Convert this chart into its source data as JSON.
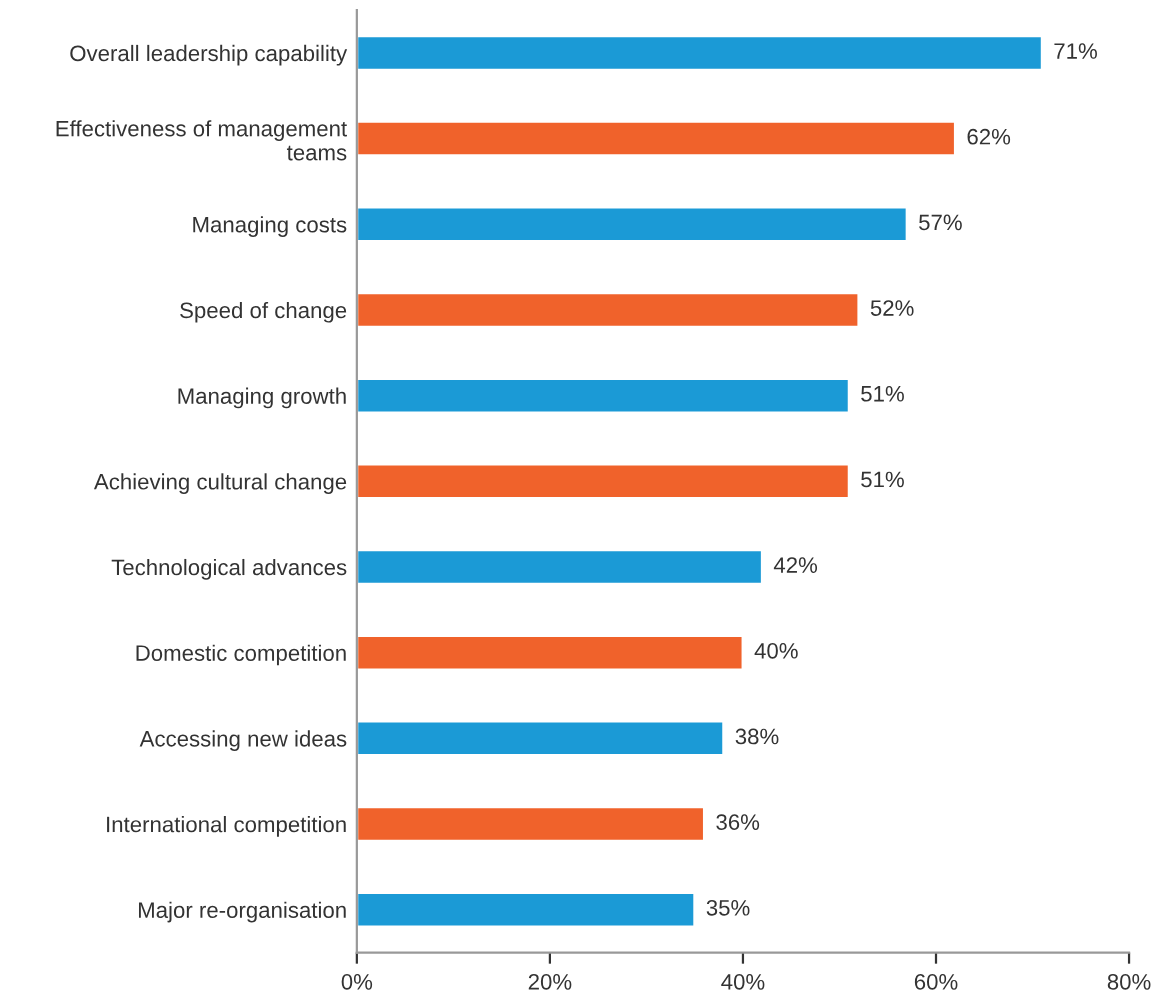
{
  "chart_data": {
    "type": "bar",
    "orientation": "horizontal",
    "categories": [
      "Overall leadership capability",
      "Effectiveness of management\nteams",
      "Managing costs",
      "Speed of change",
      "Managing growth",
      "Achieving cultural change",
      "Technological advances",
      "Domestic competition",
      "Accessing new ideas",
      "International competition",
      "Major re-organisation"
    ],
    "values": [
      71,
      62,
      57,
      52,
      51,
      51,
      42,
      40,
      38,
      36,
      35
    ],
    "colors": [
      "#1b9ad6",
      "#f0622b",
      "#1b9ad6",
      "#f0622b",
      "#1b9ad6",
      "#f0622b",
      "#1b9ad6",
      "#f0622b",
      "#1b9ad6",
      "#f0622b",
      "#1b9ad6"
    ],
    "value_labels": [
      "71%",
      "62%",
      "57%",
      "52%",
      "51%",
      "51%",
      "42%",
      "40%",
      "38%",
      "36%",
      "35%"
    ],
    "xlim": [
      0,
      80
    ],
    "xticks": [
      {
        "value": 0,
        "label": "0%"
      },
      {
        "value": 20,
        "label": "20%"
      },
      {
        "value": 40,
        "label": "40%"
      },
      {
        "value": 60,
        "label": "60%"
      },
      {
        "value": 80,
        "label": "80%"
      }
    ],
    "grid": false,
    "legend": false
  }
}
